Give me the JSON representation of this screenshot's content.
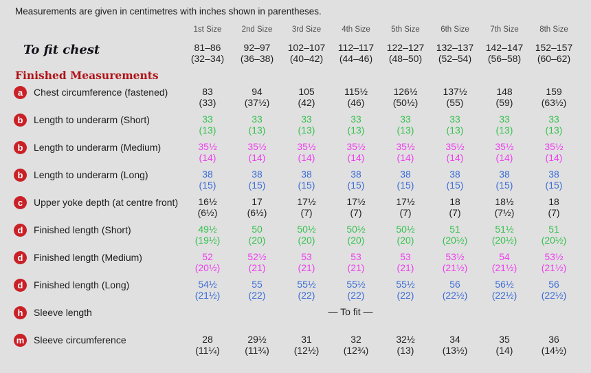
{
  "note": "Measurements are given in centimetres with inches shown in parentheses.",
  "colors": {
    "background": "#e0e0e0",
    "badge_red": "#c92127",
    "heading_red": "#b01218",
    "black": "#222222",
    "green": "#35c14e",
    "magenta": "#ee3fee",
    "blue": "#3c6cd6"
  },
  "size_headers": [
    "1st Size",
    "2nd Size",
    "3rd Size",
    "4th Size",
    "5th Size",
    "6th Size",
    "7th Size",
    "8th Size"
  ],
  "to_fit_chest": {
    "label": "To fit chest",
    "values": [
      {
        "cm": "81–86",
        "in": "(32–34)"
      },
      {
        "cm": "92–97",
        "in": "(36–38)"
      },
      {
        "cm": "102–107",
        "in": "(40–42)"
      },
      {
        "cm": "112–117",
        "in": "(44–46)"
      },
      {
        "cm": "122–127",
        "in": "(48–50)"
      },
      {
        "cm": "132–137",
        "in": "(52–54)"
      },
      {
        "cm": "142–147",
        "in": "(56–58)"
      },
      {
        "cm": "152–157",
        "in": "(60–62)"
      }
    ]
  },
  "section_heading": "Finished Measurements",
  "rows": [
    {
      "badge": "a",
      "label": "Chest circumference (fastened)",
      "color": "black",
      "values": [
        {
          "cm": "83",
          "in": "(33)"
        },
        {
          "cm": "94",
          "in": "(37½)"
        },
        {
          "cm": "105",
          "in": "(42)"
        },
        {
          "cm": "115½",
          "in": "(46)"
        },
        {
          "cm": "126½",
          "in": "(50½)"
        },
        {
          "cm": "137½",
          "in": "(55)"
        },
        {
          "cm": "148",
          "in": "(59)"
        },
        {
          "cm": "159",
          "in": "(63½)"
        }
      ]
    },
    {
      "badge": "b",
      "label": "Length to underarm (Short)",
      "color": "green",
      "values": [
        {
          "cm": "33",
          "in": "(13)"
        },
        {
          "cm": "33",
          "in": "(13)"
        },
        {
          "cm": "33",
          "in": "(13)"
        },
        {
          "cm": "33",
          "in": "(13)"
        },
        {
          "cm": "33",
          "in": "(13)"
        },
        {
          "cm": "33",
          "in": "(13)"
        },
        {
          "cm": "33",
          "in": "(13)"
        },
        {
          "cm": "33",
          "in": "(13)"
        }
      ]
    },
    {
      "badge": "b",
      "label": "Length to underarm (Medium)",
      "color": "magenta",
      "values": [
        {
          "cm": "35½",
          "in": "(14)"
        },
        {
          "cm": "35½",
          "in": "(14)"
        },
        {
          "cm": "35½",
          "in": "(14)"
        },
        {
          "cm": "35½",
          "in": "(14)"
        },
        {
          "cm": "35½",
          "in": "(14)"
        },
        {
          "cm": "35½",
          "in": "(14)"
        },
        {
          "cm": "35½",
          "in": "(14)"
        },
        {
          "cm": "35½",
          "in": "(14)"
        }
      ]
    },
    {
      "badge": "b",
      "label": "Length to underarm (Long)",
      "color": "blue",
      "values": [
        {
          "cm": "38",
          "in": "(15)"
        },
        {
          "cm": "38",
          "in": "(15)"
        },
        {
          "cm": "38",
          "in": "(15)"
        },
        {
          "cm": "38",
          "in": "(15)"
        },
        {
          "cm": "38",
          "in": "(15)"
        },
        {
          "cm": "38",
          "in": "(15)"
        },
        {
          "cm": "38",
          "in": "(15)"
        },
        {
          "cm": "38",
          "in": "(15)"
        }
      ]
    },
    {
      "badge": "c",
      "label": "Upper yoke depth (at centre front)",
      "color": "black",
      "values": [
        {
          "cm": "16½",
          "in": "(6½)"
        },
        {
          "cm": "17",
          "in": "(6½)"
        },
        {
          "cm": "17½",
          "in": "(7)"
        },
        {
          "cm": "17½",
          "in": "(7)"
        },
        {
          "cm": "17½",
          "in": "(7)"
        },
        {
          "cm": "18",
          "in": "(7)"
        },
        {
          "cm": "18½",
          "in": "(7½)"
        },
        {
          "cm": "18",
          "in": "(7)"
        }
      ]
    },
    {
      "badge": "d",
      "label": "Finished length (Short)",
      "color": "green",
      "values": [
        {
          "cm": "49½",
          "in": "(19½)"
        },
        {
          "cm": "50",
          "in": "(20)"
        },
        {
          "cm": "50½",
          "in": "(20)"
        },
        {
          "cm": "50½",
          "in": "(20)"
        },
        {
          "cm": "50½",
          "in": "(20)"
        },
        {
          "cm": "51",
          "in": "(20½)"
        },
        {
          "cm": "51½",
          "in": "(20½)"
        },
        {
          "cm": "51",
          "in": "(20½)"
        }
      ]
    },
    {
      "badge": "d",
      "label": "Finished length (Medium)",
      "color": "magenta",
      "values": [
        {
          "cm": "52",
          "in": "(20½)"
        },
        {
          "cm": "52½",
          "in": "(21)"
        },
        {
          "cm": "53",
          "in": "(21)"
        },
        {
          "cm": "53",
          "in": "(21)"
        },
        {
          "cm": "53",
          "in": "(21)"
        },
        {
          "cm": "53½",
          "in": "(21½)"
        },
        {
          "cm": "54",
          "in": "(21½)"
        },
        {
          "cm": "53½",
          "in": "(21½)"
        }
      ]
    },
    {
      "badge": "d",
      "label": "Finished length (Long)",
      "color": "blue",
      "values": [
        {
          "cm": "54½",
          "in": "(21½)"
        },
        {
          "cm": "55",
          "in": "(22)"
        },
        {
          "cm": "55½",
          "in": "(22)"
        },
        {
          "cm": "55½",
          "in": "(22)"
        },
        {
          "cm": "55½",
          "in": "(22)"
        },
        {
          "cm": "56",
          "in": "(22½)"
        },
        {
          "cm": "56½",
          "in": "(22½)"
        },
        {
          "cm": "56",
          "in": "(22½)"
        }
      ]
    },
    {
      "badge": "h",
      "label": "Sleeve length",
      "color": "black",
      "span_text": "— To fit —"
    },
    {
      "badge": "m",
      "label": "Sleeve circumference",
      "color": "black",
      "values": [
        {
          "cm": "28",
          "in": "(11¼)"
        },
        {
          "cm": "29½",
          "in": "(11¾)"
        },
        {
          "cm": "31",
          "in": "(12½)"
        },
        {
          "cm": "32",
          "in": "(12¾)"
        },
        {
          "cm": "32½",
          "in": "(13)"
        },
        {
          "cm": "34",
          "in": "(13½)"
        },
        {
          "cm": "35",
          "in": "(14)"
        },
        {
          "cm": "36",
          "in": "(14½)"
        }
      ]
    }
  ]
}
